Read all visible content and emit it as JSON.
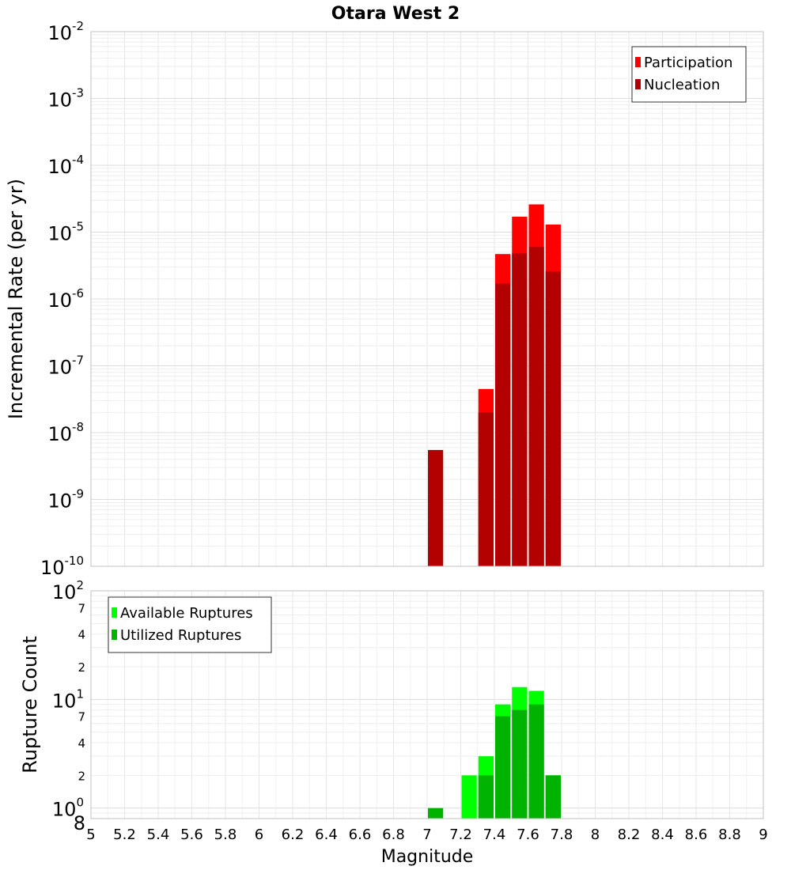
{
  "chart_data": [
    {
      "type": "bar",
      "title": "Otara West 2",
      "ylabel": "Incremental Rate (per yr)",
      "yscale": "log",
      "ylim": [
        1e-10,
        0.01
      ],
      "y_tick_labels": [
        {
          "v": 0.01,
          "base": "10",
          "exp": "-2"
        },
        {
          "v": 0.001,
          "base": "10",
          "exp": "-3"
        },
        {
          "v": 0.0001,
          "base": "10",
          "exp": "-4"
        },
        {
          "v": 1e-05,
          "base": "10",
          "exp": "-5"
        },
        {
          "v": 1e-06,
          "base": "10",
          "exp": "-6"
        },
        {
          "v": 1e-07,
          "base": "10",
          "exp": "-7"
        },
        {
          "v": 1e-08,
          "base": "10",
          "exp": "-8"
        },
        {
          "v": 1e-09,
          "base": "10",
          "exp": "-9"
        },
        {
          "v": 1e-10,
          "base": "10",
          "exp": "-10"
        }
      ],
      "grid": true,
      "legend_position": "top-right",
      "bar_width": 0.1,
      "series": [
        {
          "name": "Participation",
          "color": "#ff0000",
          "points": [
            [
              7.35,
              4.5e-08
            ],
            [
              7.45,
              4.7e-06
            ],
            [
              7.55,
              1.7e-05
            ],
            [
              7.65,
              2.6e-05
            ],
            [
              7.75,
              1.3e-05
            ]
          ]
        },
        {
          "name": "Nucleation",
          "color": "#b30000",
          "points": [
            [
              7.05,
              5.5e-09
            ],
            [
              7.35,
              2e-08
            ],
            [
              7.45,
              1.7e-06
            ],
            [
              7.55,
              4.8e-06
            ],
            [
              7.65,
              6e-06
            ],
            [
              7.75,
              2.6e-06
            ]
          ]
        }
      ]
    },
    {
      "type": "bar",
      "ylabel": "Rupture Count",
      "xlabel": "Magnitude",
      "yscale": "log",
      "ylim": [
        0.8,
        100
      ],
      "xlim": [
        5,
        9
      ],
      "x_ticks": [
        "5",
        "5.2",
        "5.4",
        "5.6",
        "5.8",
        "6",
        "6.2",
        "6.4",
        "6.6",
        "6.8",
        "7",
        "7.2",
        "7.4",
        "7.6",
        "7.8",
        "8",
        "8.2",
        "8.4",
        "8.6",
        "8.8",
        "9"
      ],
      "y_tick_labels": [
        {
          "v": 100,
          "base": "10",
          "exp": "2"
        },
        {
          "v": 70,
          "label": "7"
        },
        {
          "v": 40,
          "label": "4"
        },
        {
          "v": 20,
          "label": "2"
        },
        {
          "v": 10,
          "base": "10",
          "exp": "1"
        },
        {
          "v": 7,
          "label": "7"
        },
        {
          "v": 4,
          "label": "4"
        },
        {
          "v": 2,
          "label": "2"
        },
        {
          "v": 1,
          "base": "10",
          "exp": "0"
        },
        {
          "v": 0.8,
          "label": "8"
        }
      ],
      "grid": true,
      "legend_position": "top-left",
      "bar_width": 0.1,
      "series": [
        {
          "name": "Available Ruptures",
          "color": "#00ff00",
          "points": [
            [
              7.25,
              2
            ],
            [
              7.35,
              3
            ],
            [
              7.45,
              9
            ],
            [
              7.55,
              13
            ],
            [
              7.65,
              12
            ],
            [
              7.75,
              2
            ]
          ]
        },
        {
          "name": "Utilized Ruptures",
          "color": "#00b300",
          "points": [
            [
              7.05,
              1
            ],
            [
              7.35,
              2
            ],
            [
              7.45,
              7
            ],
            [
              7.55,
              8
            ],
            [
              7.65,
              9
            ],
            [
              7.75,
              2
            ]
          ]
        }
      ]
    }
  ]
}
